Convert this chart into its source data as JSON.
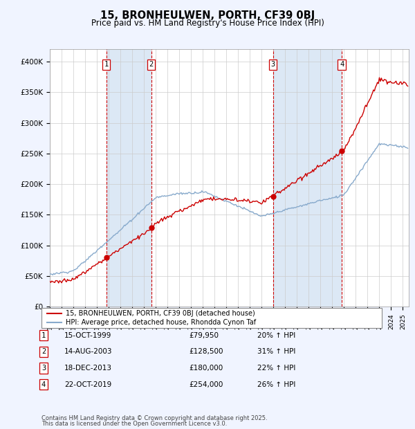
{
  "title": "15, BRONHEULWEN, PORTH, CF39 0BJ",
  "subtitle": "Price paid vs. HM Land Registry's House Price Index (HPI)",
  "xlim": [
    1995.0,
    2025.5
  ],
  "ylim": [
    0,
    420000
  ],
  "yticks": [
    0,
    50000,
    100000,
    150000,
    200000,
    250000,
    300000,
    350000,
    400000
  ],
  "ytick_labels": [
    "£0",
    "£50K",
    "£100K",
    "£150K",
    "£200K",
    "£250K",
    "£300K",
    "£350K",
    "£400K"
  ],
  "sale_color": "#cc0000",
  "hpi_color": "#88aacc",
  "sale_label": "15, BRONHEULWEN, PORTH, CF39 0BJ (detached house)",
  "hpi_label": "HPI: Average price, detached house, Rhondda Cynon Taf",
  "band_color": "#dce8f5",
  "transactions": [
    {
      "num": 1,
      "date": "15-OCT-1999",
      "year": 1999.79,
      "price": 79950,
      "pct": "20%",
      "dir": "↑"
    },
    {
      "num": 2,
      "date": "14-AUG-2003",
      "year": 2003.62,
      "price": 128500,
      "pct": "31%",
      "dir": "↑"
    },
    {
      "num": 3,
      "date": "18-DEC-2013",
      "year": 2013.96,
      "price": 180000,
      "pct": "22%",
      "dir": "↑"
    },
    {
      "num": 4,
      "date": "22-OCT-2019",
      "year": 2019.81,
      "price": 254000,
      "pct": "26%",
      "dir": "↑"
    }
  ],
  "footnote1": "Contains HM Land Registry data © Crown copyright and database right 2025.",
  "footnote2": "This data is licensed under the Open Government Licence v3.0.",
  "background_color": "#f0f4ff",
  "plot_bg_color": "#ffffff"
}
